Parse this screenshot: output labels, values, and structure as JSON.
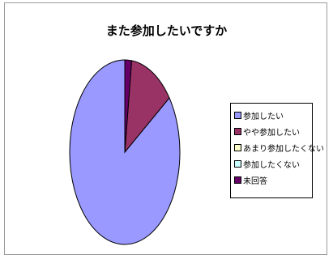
{
  "chart_data": {
    "type": "pie",
    "title": "また参加したいですか",
    "categories": [
      "参加したい",
      "やや参加したい",
      "あまり参加したくない",
      "参加したくない",
      "未回答"
    ],
    "values": [
      85,
      13,
      0,
      0,
      2
    ],
    "colors": [
      "#9999ff",
      "#993366",
      "#ffffcc",
      "#ccffff",
      "#660066"
    ],
    "legend_position": "right"
  }
}
